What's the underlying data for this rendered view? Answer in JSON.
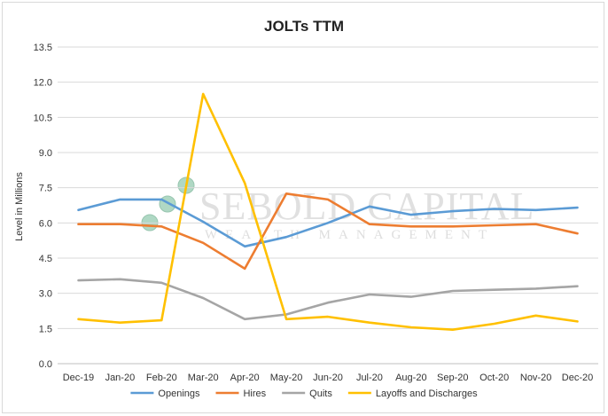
{
  "chart_data": {
    "type": "line",
    "title": "JOLTs TTM",
    "ylabel": "Level in Millions",
    "xlabel": "",
    "ylim": [
      0,
      13.5
    ],
    "yticks": [
      "0.0",
      "1.5",
      "3.0",
      "4.5",
      "6.0",
      "7.5",
      "9.0",
      "10.5",
      "12.0",
      "13.5"
    ],
    "ytick_values": [
      0,
      1.5,
      3,
      4.5,
      6,
      7.5,
      9,
      10.5,
      12,
      13.5
    ],
    "grid": "horizontal",
    "legend": "bottom",
    "categories": [
      "Dec-19",
      "Jan-20",
      "Feb-20",
      "Mar-20",
      "Apr-20",
      "May-20",
      "Jun-20",
      "Jul-20",
      "Aug-20",
      "Sep-20",
      "Oct-20",
      "Nov-20",
      "Dec-20"
    ],
    "series": [
      {
        "name": "Openings",
        "color": "#5b9bd5",
        "values": [
          6.55,
          7.0,
          7.0,
          6.05,
          5.0,
          5.4,
          6.0,
          6.7,
          6.35,
          6.5,
          6.6,
          6.55,
          6.65
        ]
      },
      {
        "name": "Hires",
        "color": "#ed7d31",
        "values": [
          5.95,
          5.95,
          5.85,
          5.15,
          4.05,
          7.25,
          7.0,
          5.95,
          5.85,
          5.85,
          5.9,
          5.95,
          5.55
        ]
      },
      {
        "name": "Quits",
        "color": "#a5a5a5",
        "values": [
          3.55,
          3.6,
          3.45,
          2.8,
          1.9,
          2.1,
          2.6,
          2.95,
          2.85,
          3.1,
          3.15,
          3.2,
          3.3
        ]
      },
      {
        "name": "Layoffs and Discharges",
        "color": "#ffc000",
        "values": [
          1.9,
          1.75,
          1.85,
          11.5,
          7.7,
          1.9,
          2.0,
          1.75,
          1.55,
          1.45,
          1.7,
          2.05,
          1.8
        ]
      }
    ]
  },
  "watermark": {
    "line1": "SEBOLD CAPITAL",
    "line2": "WEALTH MANAGEMENT"
  }
}
